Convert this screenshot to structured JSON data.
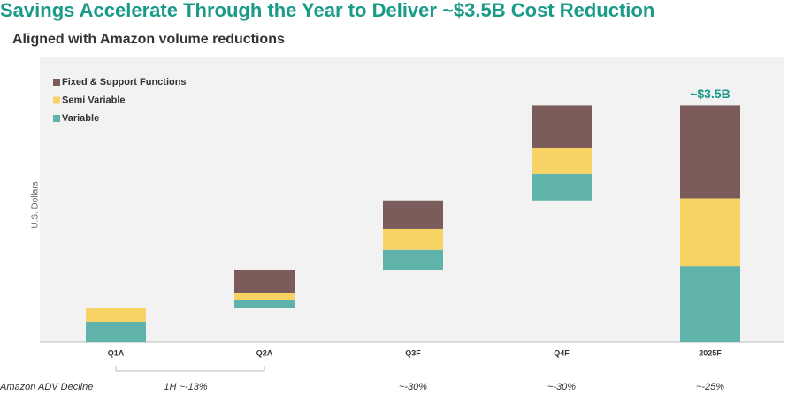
{
  "chart_data": {
    "type": "waterfall",
    "title": "Savings Accelerate Through the Year to Deliver ~$3.5B Cost Reduction",
    "subtitle": "Aligned with Amazon volume reductions",
    "y_label": "U.S. Dollars",
    "categories": [
      "Q1A",
      "Q2A",
      "Q3F",
      "Q4F",
      "2025F"
    ],
    "totals": [
      false,
      false,
      false,
      false,
      true
    ],
    "series": [
      {
        "name": "Variable",
        "color": "#5fb3aa",
        "values": [
          0.3,
          0.12,
          0.3,
          0.39,
          1.12
        ]
      },
      {
        "name": "Semi Variable",
        "color": "#f7d366",
        "values": [
          0.2,
          0.1,
          0.31,
          0.39,
          1.0
        ]
      },
      {
        "name": "Fixed & Support Functions",
        "color": "#7b5c5a",
        "values": [
          0,
          0.34,
          0.42,
          0.62,
          1.37
        ]
      }
    ],
    "ylim": [
      0,
      4.2
    ],
    "total_label": "~$3.5B",
    "row_label": "Amazon ADV Decline",
    "row_values": [
      "1H ~-13%",
      "~-30%",
      "~-30%",
      "~-25%"
    ]
  }
}
